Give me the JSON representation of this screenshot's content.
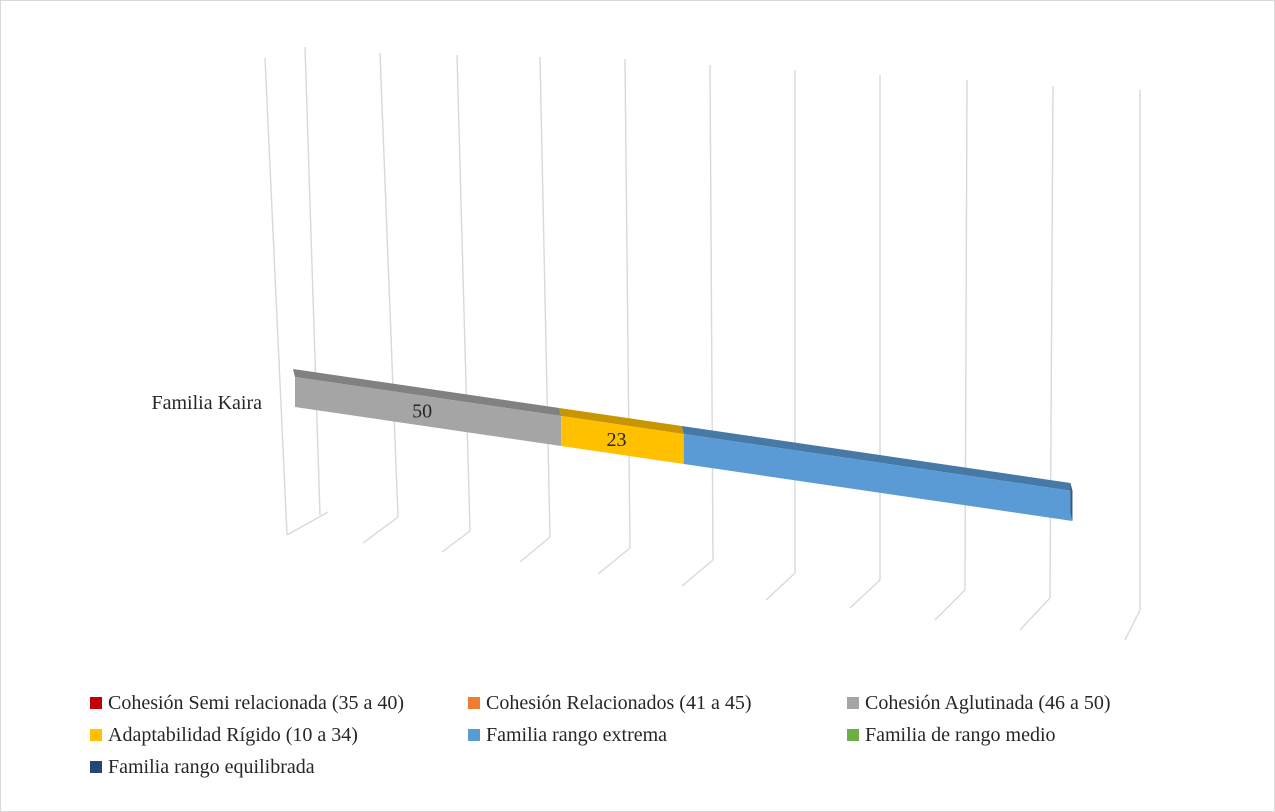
{
  "chart_data": {
    "type": "bar",
    "orientation": "horizontal",
    "stacked": true,
    "three_d": true,
    "categories": [
      "Familia Kaira"
    ],
    "series": [
      {
        "name": "Cohesión Semi relacionada (35 a 40)",
        "values": [
          0
        ],
        "color": "#c00000"
      },
      {
        "name": "Cohesión Relacionados (41 a 45)",
        "values": [
          0
        ],
        "color": "#ed7d31"
      },
      {
        "name": "Cohesión Aglutinada (46 a 50)",
        "values": [
          50
        ],
        "color": "#a5a5a5"
      },
      {
        "name": "Adaptabilidad Rígido (10 a 34)",
        "values": [
          23
        ],
        "color": "#ffc000"
      },
      {
        "name": "Familia rango extrema",
        "values": [
          73
        ],
        "color": "#5b9bd5"
      },
      {
        "name": "Familia de rango medio",
        "values": [
          0
        ],
        "color": "#70ad47"
      },
      {
        "name": "Familia rango equilibrada",
        "values": [
          0
        ],
        "color": "#264478"
      }
    ],
    "data_labels": [
      "50",
      "23"
    ],
    "xlim": [
      0,
      160
    ],
    "grid": true,
    "legend_position": "bottom",
    "title": "",
    "xlabel": "",
    "ylabel": ""
  }
}
